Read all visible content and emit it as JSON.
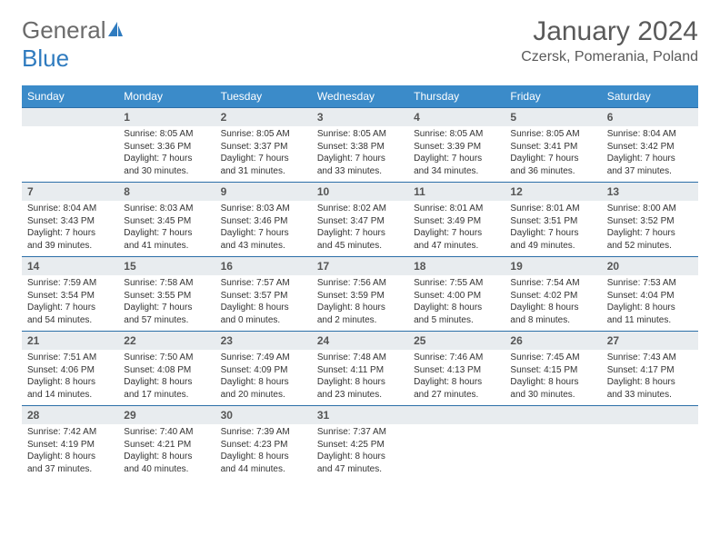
{
  "brand": {
    "part1": "General",
    "part2": "Blue",
    "logo_color": "#2f7bbf"
  },
  "header": {
    "month": "January 2024",
    "location": "Czersk, Pomerania, Poland"
  },
  "colors": {
    "header_bg": "#3b8bc9",
    "rule": "#2b6fa8",
    "daynum_bg": "#e8ecef"
  },
  "day_names": [
    "Sunday",
    "Monday",
    "Tuesday",
    "Wednesday",
    "Thursday",
    "Friday",
    "Saturday"
  ],
  "weeks": [
    [
      {
        "n": "",
        "lines": [
          "",
          "",
          "",
          ""
        ]
      },
      {
        "n": "1",
        "lines": [
          "Sunrise: 8:05 AM",
          "Sunset: 3:36 PM",
          "Daylight: 7 hours",
          "and 30 minutes."
        ]
      },
      {
        "n": "2",
        "lines": [
          "Sunrise: 8:05 AM",
          "Sunset: 3:37 PM",
          "Daylight: 7 hours",
          "and 31 minutes."
        ]
      },
      {
        "n": "3",
        "lines": [
          "Sunrise: 8:05 AM",
          "Sunset: 3:38 PM",
          "Daylight: 7 hours",
          "and 33 minutes."
        ]
      },
      {
        "n": "4",
        "lines": [
          "Sunrise: 8:05 AM",
          "Sunset: 3:39 PM",
          "Daylight: 7 hours",
          "and 34 minutes."
        ]
      },
      {
        "n": "5",
        "lines": [
          "Sunrise: 8:05 AM",
          "Sunset: 3:41 PM",
          "Daylight: 7 hours",
          "and 36 minutes."
        ]
      },
      {
        "n": "6",
        "lines": [
          "Sunrise: 8:04 AM",
          "Sunset: 3:42 PM",
          "Daylight: 7 hours",
          "and 37 minutes."
        ]
      }
    ],
    [
      {
        "n": "7",
        "lines": [
          "Sunrise: 8:04 AM",
          "Sunset: 3:43 PM",
          "Daylight: 7 hours",
          "and 39 minutes."
        ]
      },
      {
        "n": "8",
        "lines": [
          "Sunrise: 8:03 AM",
          "Sunset: 3:45 PM",
          "Daylight: 7 hours",
          "and 41 minutes."
        ]
      },
      {
        "n": "9",
        "lines": [
          "Sunrise: 8:03 AM",
          "Sunset: 3:46 PM",
          "Daylight: 7 hours",
          "and 43 minutes."
        ]
      },
      {
        "n": "10",
        "lines": [
          "Sunrise: 8:02 AM",
          "Sunset: 3:47 PM",
          "Daylight: 7 hours",
          "and 45 minutes."
        ]
      },
      {
        "n": "11",
        "lines": [
          "Sunrise: 8:01 AM",
          "Sunset: 3:49 PM",
          "Daylight: 7 hours",
          "and 47 minutes."
        ]
      },
      {
        "n": "12",
        "lines": [
          "Sunrise: 8:01 AM",
          "Sunset: 3:51 PM",
          "Daylight: 7 hours",
          "and 49 minutes."
        ]
      },
      {
        "n": "13",
        "lines": [
          "Sunrise: 8:00 AM",
          "Sunset: 3:52 PM",
          "Daylight: 7 hours",
          "and 52 minutes."
        ]
      }
    ],
    [
      {
        "n": "14",
        "lines": [
          "Sunrise: 7:59 AM",
          "Sunset: 3:54 PM",
          "Daylight: 7 hours",
          "and 54 minutes."
        ]
      },
      {
        "n": "15",
        "lines": [
          "Sunrise: 7:58 AM",
          "Sunset: 3:55 PM",
          "Daylight: 7 hours",
          "and 57 minutes."
        ]
      },
      {
        "n": "16",
        "lines": [
          "Sunrise: 7:57 AM",
          "Sunset: 3:57 PM",
          "Daylight: 8 hours",
          "and 0 minutes."
        ]
      },
      {
        "n": "17",
        "lines": [
          "Sunrise: 7:56 AM",
          "Sunset: 3:59 PM",
          "Daylight: 8 hours",
          "and 2 minutes."
        ]
      },
      {
        "n": "18",
        "lines": [
          "Sunrise: 7:55 AM",
          "Sunset: 4:00 PM",
          "Daylight: 8 hours",
          "and 5 minutes."
        ]
      },
      {
        "n": "19",
        "lines": [
          "Sunrise: 7:54 AM",
          "Sunset: 4:02 PM",
          "Daylight: 8 hours",
          "and 8 minutes."
        ]
      },
      {
        "n": "20",
        "lines": [
          "Sunrise: 7:53 AM",
          "Sunset: 4:04 PM",
          "Daylight: 8 hours",
          "and 11 minutes."
        ]
      }
    ],
    [
      {
        "n": "21",
        "lines": [
          "Sunrise: 7:51 AM",
          "Sunset: 4:06 PM",
          "Daylight: 8 hours",
          "and 14 minutes."
        ]
      },
      {
        "n": "22",
        "lines": [
          "Sunrise: 7:50 AM",
          "Sunset: 4:08 PM",
          "Daylight: 8 hours",
          "and 17 minutes."
        ]
      },
      {
        "n": "23",
        "lines": [
          "Sunrise: 7:49 AM",
          "Sunset: 4:09 PM",
          "Daylight: 8 hours",
          "and 20 minutes."
        ]
      },
      {
        "n": "24",
        "lines": [
          "Sunrise: 7:48 AM",
          "Sunset: 4:11 PM",
          "Daylight: 8 hours",
          "and 23 minutes."
        ]
      },
      {
        "n": "25",
        "lines": [
          "Sunrise: 7:46 AM",
          "Sunset: 4:13 PM",
          "Daylight: 8 hours",
          "and 27 minutes."
        ]
      },
      {
        "n": "26",
        "lines": [
          "Sunrise: 7:45 AM",
          "Sunset: 4:15 PM",
          "Daylight: 8 hours",
          "and 30 minutes."
        ]
      },
      {
        "n": "27",
        "lines": [
          "Sunrise: 7:43 AM",
          "Sunset: 4:17 PM",
          "Daylight: 8 hours",
          "and 33 minutes."
        ]
      }
    ],
    [
      {
        "n": "28",
        "lines": [
          "Sunrise: 7:42 AM",
          "Sunset: 4:19 PM",
          "Daylight: 8 hours",
          "and 37 minutes."
        ]
      },
      {
        "n": "29",
        "lines": [
          "Sunrise: 7:40 AM",
          "Sunset: 4:21 PM",
          "Daylight: 8 hours",
          "and 40 minutes."
        ]
      },
      {
        "n": "30",
        "lines": [
          "Sunrise: 7:39 AM",
          "Sunset: 4:23 PM",
          "Daylight: 8 hours",
          "and 44 minutes."
        ]
      },
      {
        "n": "31",
        "lines": [
          "Sunrise: 7:37 AM",
          "Sunset: 4:25 PM",
          "Daylight: 8 hours",
          "and 47 minutes."
        ]
      },
      {
        "n": "",
        "lines": [
          "",
          "",
          "",
          ""
        ]
      },
      {
        "n": "",
        "lines": [
          "",
          "",
          "",
          ""
        ]
      },
      {
        "n": "",
        "lines": [
          "",
          "",
          "",
          ""
        ]
      }
    ]
  ]
}
